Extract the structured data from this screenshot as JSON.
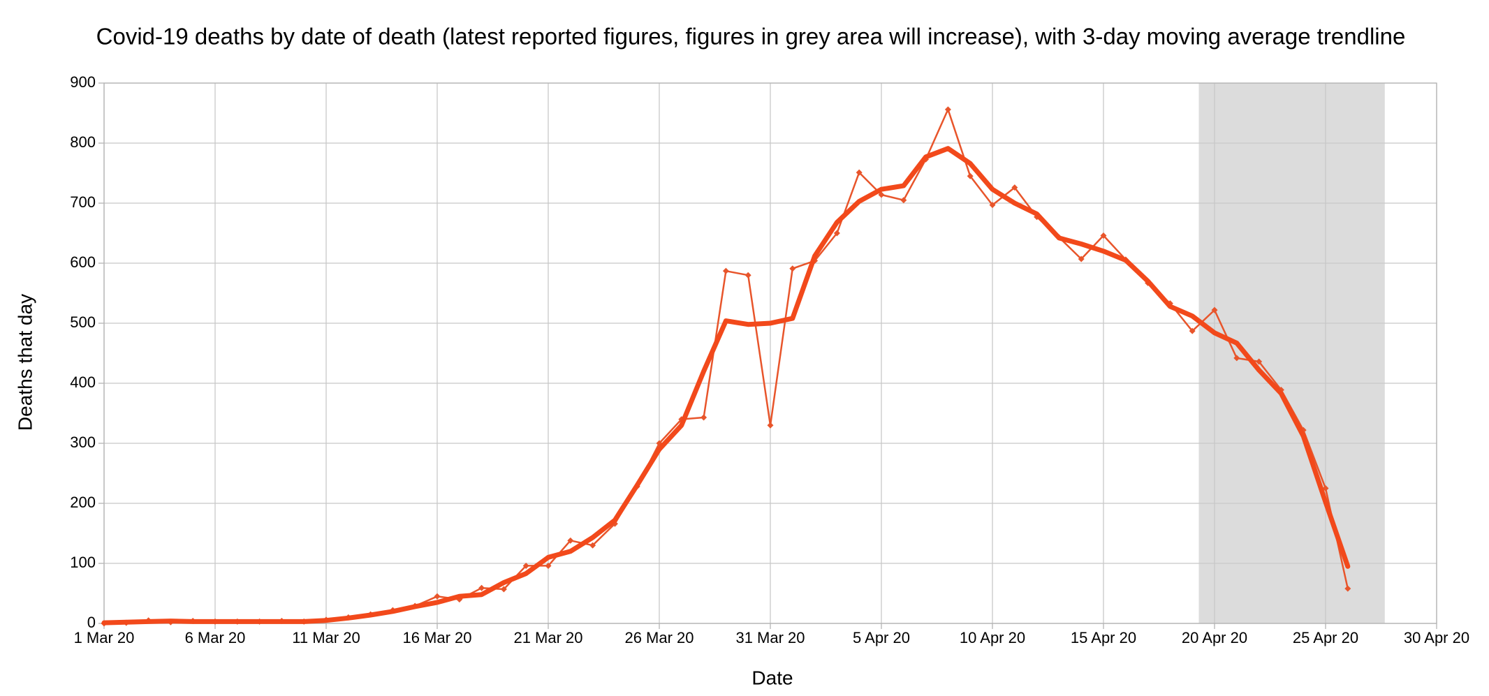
{
  "chart_data": {
    "type": "line",
    "title": "Covid-19 deaths by date of death (latest reported figures, figures in grey area will increase), with 3-day moving average trendline",
    "x_label": "Date",
    "y_label": "Deaths that day",
    "x": [
      "2020-03-01",
      "2020-03-02",
      "2020-03-03",
      "2020-03-04",
      "2020-03-05",
      "2020-03-06",
      "2020-03-07",
      "2020-03-08",
      "2020-03-09",
      "2020-03-10",
      "2020-03-11",
      "2020-03-12",
      "2020-03-13",
      "2020-03-14",
      "2020-03-15",
      "2020-03-16",
      "2020-03-17",
      "2020-03-18",
      "2020-03-19",
      "2020-03-20",
      "2020-03-21",
      "2020-03-22",
      "2020-03-23",
      "2020-03-24",
      "2020-03-25",
      "2020-03-26",
      "2020-03-27",
      "2020-03-28",
      "2020-03-29",
      "2020-03-30",
      "2020-03-31",
      "2020-04-01",
      "2020-04-02",
      "2020-04-03",
      "2020-04-04",
      "2020-04-05",
      "2020-04-06",
      "2020-04-07",
      "2020-04-08",
      "2020-04-09",
      "2020-04-10",
      "2020-04-11",
      "2020-04-12",
      "2020-04-13",
      "2020-04-14",
      "2020-04-15",
      "2020-04-16",
      "2020-04-17",
      "2020-04-18",
      "2020-04-19",
      "2020-04-20",
      "2020-04-21",
      "2020-04-22",
      "2020-04-23",
      "2020-04-24",
      "2020-04-25",
      "2020-04-26"
    ],
    "series": [
      {
        "color": "#e8552b",
        "style": "thin-markers",
        "values": [
          0,
          1,
          5,
          2,
          4,
          3,
          3,
          3,
          4,
          3,
          6,
          10,
          15,
          22,
          29,
          45,
          40,
          59,
          57,
          96,
          96,
          138,
          130,
          166,
          228,
          300,
          340,
          343,
          587,
          580,
          330,
          591,
          604,
          650,
          751,
          714,
          705,
          773,
          856,
          745,
          697,
          726,
          677,
          643,
          607,
          646,
          606,
          567,
          533,
          487,
          522,
          442,
          436,
          389,
          322,
          225,
          58
        ]
      },
      {
        "color": "#f2491b",
        "style": "thick",
        "values": [
          1,
          2,
          3,
          4,
          3,
          3,
          3,
          3,
          3,
          3,
          5,
          9,
          14,
          20,
          28,
          35,
          45,
          48,
          68,
          83,
          110,
          120,
          143,
          172,
          230,
          290,
          330,
          420,
          504,
          498,
          500,
          508,
          612,
          668,
          703,
          723,
          729,
          777,
          791,
          766,
          723,
          700,
          682,
          642,
          632,
          620,
          605,
          570,
          528,
          512,
          484,
          467,
          422,
          383,
          312,
          202,
          95
        ]
      }
    ],
    "shaded_range": [
      "2020-04-19T07:00",
      "2020-04-27T16:00"
    ],
    "shade_color": "#dcdcdc",
    "xlim": [
      "2020-03-01",
      "2020-04-30"
    ],
    "xticks": [
      {
        "value": "2020-03-01",
        "label": "1 Mar 20"
      },
      {
        "value": "2020-03-06",
        "label": "6 Mar 20"
      },
      {
        "value": "2020-03-11",
        "label": "11 Mar 20"
      },
      {
        "value": "2020-03-16",
        "label": "16 Mar 20"
      },
      {
        "value": "2020-03-21",
        "label": "21 Mar 20"
      },
      {
        "value": "2020-03-26",
        "label": "26 Mar 20"
      },
      {
        "value": "2020-03-31",
        "label": "31 Mar 20"
      },
      {
        "value": "2020-04-05",
        "label": "5 Apr 20"
      },
      {
        "value": "2020-04-10",
        "label": "10 Apr 20"
      },
      {
        "value": "2020-04-15",
        "label": "15 Apr 20"
      },
      {
        "value": "2020-04-20",
        "label": "20 Apr 20"
      },
      {
        "value": "2020-04-25",
        "label": "25 Apr 20"
      },
      {
        "value": "2020-04-30",
        "label": "30 Apr 20"
      }
    ],
    "ylim": [
      0,
      900
    ],
    "yticks": [
      0,
      100,
      200,
      300,
      400,
      500,
      600,
      700,
      800,
      900
    ],
    "grid": true
  }
}
